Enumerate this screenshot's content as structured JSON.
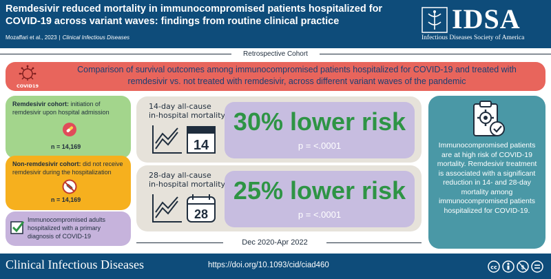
{
  "header": {
    "title": "Remdesivir reduced mortality in immunocompromised patients hospitalized for COVID-19 across variant waves: findings from routine clinical practice",
    "citation_authors": "Mozaffari et al., 2023",
    "citation_separator": "|",
    "citation_journal": "Clinical Infectious Diseases",
    "logo_text": "IDSA",
    "logo_subtitle": "Infectious Diseases Society of America"
  },
  "study_design": "Retrospective Cohort",
  "comparison": {
    "icon_caption": "COVID19",
    "text": "Comparison of survival outcomes among immunocompromised patients hospitalized for COVID-19 and treated with remdesivir vs. not treated with remdesivir, across different variant waves of the pandemic"
  },
  "cohorts": {
    "remdesivir": {
      "lead": "Remdesivir cohort:",
      "text": " initiation of remdesivir upon hospital admission",
      "n": "n = 14,169"
    },
    "non_remdesivir": {
      "lead": "Non-remdesivir cohort:",
      "text": " did not receive remdesivir during the hospitalization",
      "n": "n = 14,169"
    },
    "population": {
      "text": "Immunocompromised adults hospitalized with a primary diagnosis of COVID-19"
    }
  },
  "outcomes": [
    {
      "label_line1": "14-day all-cause",
      "label_line2": "in-hospital mortality",
      "calendar_number": "14",
      "result": "30% lower risk",
      "p_value": "p = <.0001"
    },
    {
      "label_line1": "28-day all-cause",
      "label_line2": "in-hospital mortality",
      "calendar_number": "28",
      "result": "25% lower risk",
      "p_value": "p = <.0001"
    }
  ],
  "date_range": "Dec 2020-Apr 2022",
  "conclusion": "Immunocompromised patients are at high risk of COVID-19 mortality. Remdesivir treatment is associated with a significant reduction in 14- and 28-day mortality among immunocompromised patients hospitalized for COVID-19.",
  "footer": {
    "journal": "Clinical Infectious Diseases",
    "doi": "https://doi.org/10.1093/cid/ciad460",
    "license_icons": [
      "cc-icon",
      "by-icon",
      "nc-icon",
      "nd-icon"
    ]
  },
  "colors": {
    "header_blue": "#0e4c7a",
    "compare_red": "#e8655c",
    "remdesivir_green": "#a3d58c",
    "non_remdesivir_orange": "#f6b01e",
    "population_lavender": "#c6b3dc",
    "outcome_bg": "#e6e2da",
    "risk_pill": "#c7bde0",
    "risk_green": "#2e9445",
    "conclusion_teal": "#4a98a6"
  }
}
